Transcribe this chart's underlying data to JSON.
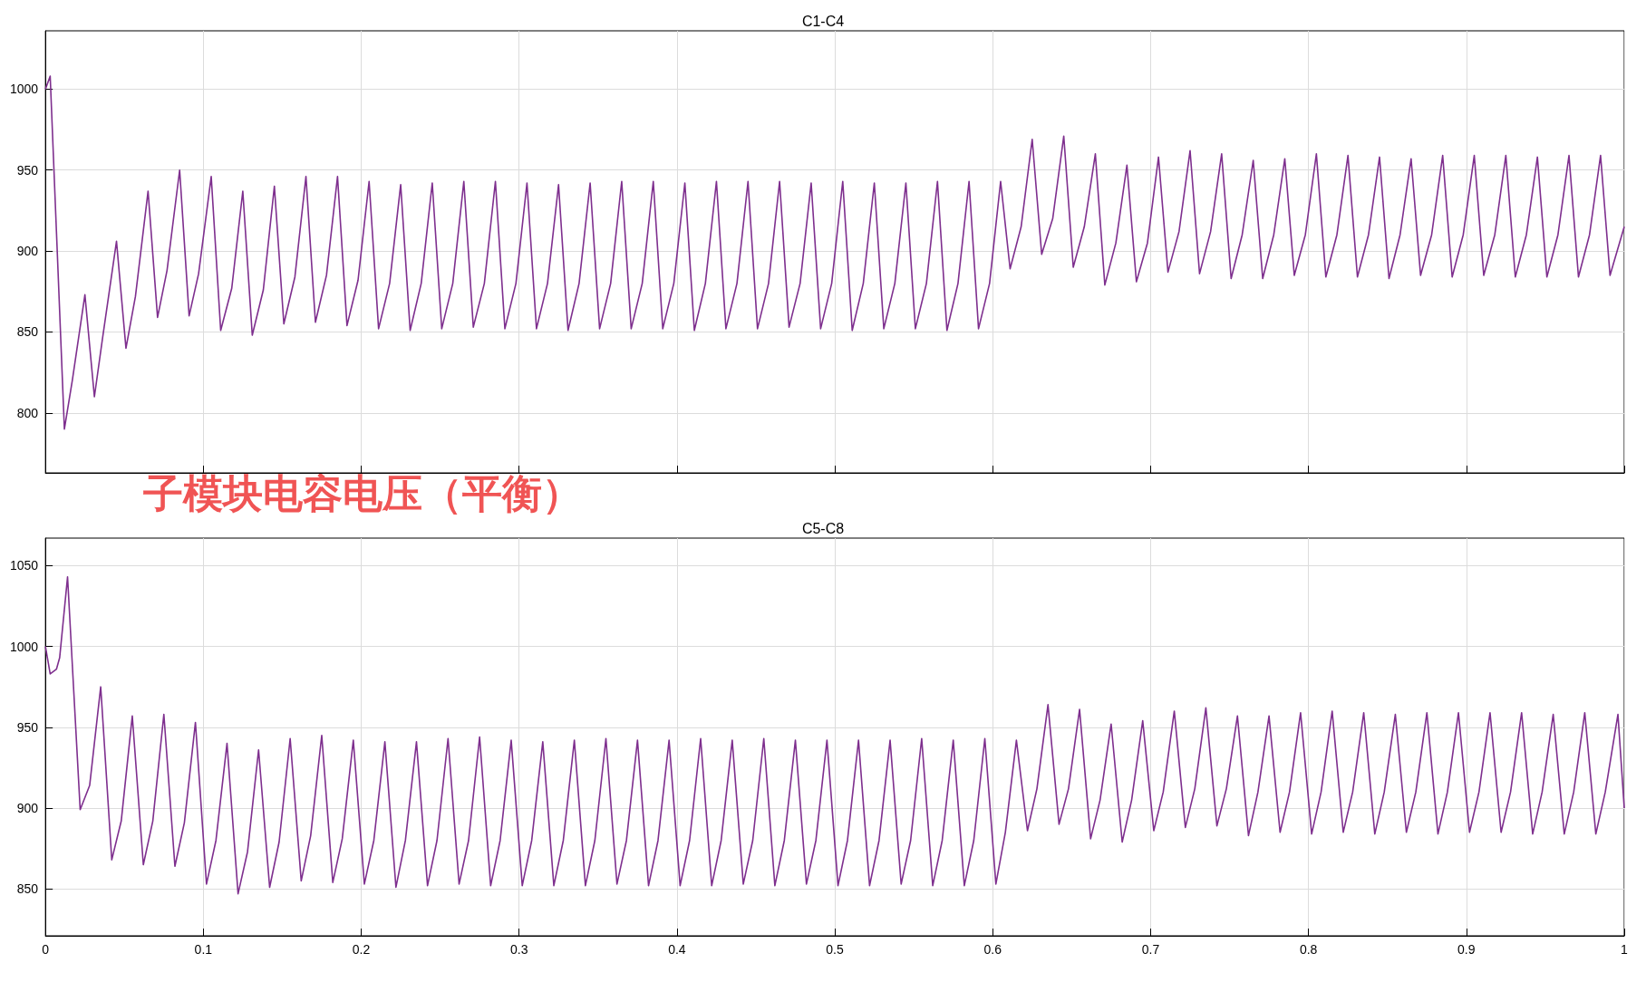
{
  "chart_data": [
    {
      "type": "line",
      "title": "C1-C4",
      "annotations": [
        "子模块电容电压（平衡）"
      ],
      "xlim": [
        0,
        1
      ],
      "xticks": [
        0,
        0.1,
        0.2,
        0.3,
        0.4,
        0.5,
        0.6,
        0.7,
        0.8,
        0.9,
        1
      ],
      "ylim": [
        763,
        1036
      ],
      "yticks": [
        800,
        850,
        900,
        950,
        1000
      ],
      "grid": true,
      "tick_labels": "y",
      "series": [
        {
          "color": "#7e2f8e",
          "x": [
            0,
            0.003,
            0.012,
            0.017,
            0.025,
            0.031,
            0.036,
            0.045,
            0.051,
            0.057,
            0.065,
            0.071,
            0.077,
            0.085,
            0.091,
            0.097,
            0.105,
            0.111,
            0.118,
            0.125,
            0.131,
            0.138,
            0.145,
            0.151,
            0.158,
            0.165,
            0.171,
            0.178,
            0.185,
            0.191,
            0.198,
            0.205,
            0.211,
            0.218,
            0.225,
            0.231,
            0.238,
            0.245,
            0.251,
            0.258,
            0.265,
            0.271,
            0.278,
            0.285,
            0.291,
            0.298,
            0.305,
            0.311,
            0.318,
            0.325,
            0.331,
            0.338,
            0.345,
            0.351,
            0.358,
            0.365,
            0.371,
            0.378,
            0.385,
            0.391,
            0.398,
            0.405,
            0.411,
            0.418,
            0.425,
            0.431,
            0.438,
            0.445,
            0.451,
            0.458,
            0.465,
            0.471,
            0.478,
            0.485,
            0.491,
            0.498,
            0.505,
            0.511,
            0.518,
            0.525,
            0.531,
            0.538,
            0.545,
            0.551,
            0.558,
            0.565,
            0.571,
            0.578,
            0.585,
            0.591,
            0.598,
            0.605,
            0.611,
            0.618,
            0.625,
            0.631,
            0.638,
            0.645,
            0.651,
            0.658,
            0.665,
            0.671,
            0.678,
            0.685,
            0.691,
            0.698,
            0.705,
            0.711,
            0.718,
            0.725,
            0.731,
            0.738,
            0.745,
            0.751,
            0.758,
            0.765,
            0.771,
            0.778,
            0.785,
            0.791,
            0.798,
            0.805,
            0.811,
            0.818,
            0.825,
            0.831,
            0.838,
            0.845,
            0.851,
            0.858,
            0.865,
            0.871,
            0.878,
            0.885,
            0.891,
            0.898,
            0.905,
            0.911,
            0.918,
            0.925,
            0.931,
            0.938,
            0.945,
            0.951,
            0.958,
            0.965,
            0.971,
            0.978,
            0.985,
            0.991,
            1
          ],
          "values": [
            1000,
            1008,
            790,
            820,
            873,
            810,
            845,
            906,
            840,
            872,
            937,
            859,
            888,
            950,
            860,
            886,
            946,
            851,
            877,
            937,
            848,
            876,
            940,
            855,
            884,
            946,
            856,
            885,
            946,
            854,
            882,
            943,
            852,
            880,
            941,
            851,
            880,
            942,
            852,
            880,
            943,
            853,
            880,
            943,
            852,
            880,
            942,
            852,
            880,
            941,
            851,
            880,
            942,
            852,
            880,
            943,
            852,
            880,
            943,
            852,
            880,
            942,
            851,
            880,
            943,
            852,
            880,
            943,
            852,
            880,
            943,
            853,
            880,
            942,
            852,
            880,
            943,
            851,
            880,
            942,
            852,
            880,
            942,
            852,
            880,
            943,
            851,
            880,
            943,
            852,
            880,
            943,
            889,
            915,
            969,
            898,
            920,
            971,
            890,
            915,
            960,
            879,
            905,
            953,
            881,
            905,
            958,
            887,
            912,
            962,
            886,
            912,
            960,
            883,
            910,
            956,
            883,
            910,
            957,
            885,
            910,
            960,
            884,
            910,
            959,
            884,
            910,
            958,
            883,
            910,
            957,
            885,
            910,
            959,
            884,
            910,
            959,
            885,
            910,
            959,
            884,
            910,
            958,
            884,
            910,
            959,
            884,
            910,
            959,
            885,
            915
          ]
        }
      ]
    },
    {
      "type": "line",
      "title": "C5-C8",
      "xlim": [
        0,
        1
      ],
      "xticks": [
        0,
        0.1,
        0.2,
        0.3,
        0.4,
        0.5,
        0.6,
        0.7,
        0.8,
        0.9,
        1
      ],
      "ylim": [
        821,
        1067
      ],
      "yticks": [
        850,
        900,
        950,
        1000,
        1050
      ],
      "grid": true,
      "series": [
        {
          "color": "#7e2f8e",
          "x": [
            0,
            0.003,
            0.007,
            0.009,
            0.014,
            0.022,
            0.028,
            0.035,
            0.042,
            0.048,
            0.055,
            0.062,
            0.068,
            0.075,
            0.082,
            0.088,
            0.095,
            0.102,
            0.108,
            0.115,
            0.122,
            0.128,
            0.135,
            0.142,
            0.148,
            0.155,
            0.162,
            0.168,
            0.175,
            0.182,
            0.188,
            0.195,
            0.202,
            0.208,
            0.215,
            0.222,
            0.228,
            0.235,
            0.242,
            0.248,
            0.255,
            0.262,
            0.268,
            0.275,
            0.282,
            0.288,
            0.295,
            0.302,
            0.308,
            0.315,
            0.322,
            0.328,
            0.335,
            0.342,
            0.348,
            0.355,
            0.362,
            0.368,
            0.375,
            0.382,
            0.388,
            0.395,
            0.402,
            0.408,
            0.415,
            0.422,
            0.428,
            0.435,
            0.442,
            0.448,
            0.455,
            0.462,
            0.468,
            0.475,
            0.482,
            0.488,
            0.495,
            0.502,
            0.508,
            0.515,
            0.522,
            0.528,
            0.535,
            0.542,
            0.548,
            0.555,
            0.562,
            0.568,
            0.575,
            0.582,
            0.588,
            0.595,
            0.602,
            0.608,
            0.615,
            0.622,
            0.628,
            0.635,
            0.642,
            0.648,
            0.655,
            0.662,
            0.668,
            0.675,
            0.682,
            0.688,
            0.695,
            0.702,
            0.708,
            0.715,
            0.722,
            0.728,
            0.735,
            0.742,
            0.748,
            0.755,
            0.762,
            0.768,
            0.775,
            0.782,
            0.788,
            0.795,
            0.802,
            0.808,
            0.815,
            0.822,
            0.828,
            0.835,
            0.842,
            0.848,
            0.855,
            0.862,
            0.868,
            0.875,
            0.882,
            0.888,
            0.895,
            0.902,
            0.908,
            0.915,
            0.922,
            0.928,
            0.935,
            0.942,
            0.948,
            0.955,
            0.962,
            0.968,
            0.975,
            0.982,
            0.988,
            0.996,
            1
          ],
          "values": [
            1000,
            983,
            986,
            993,
            1043,
            899,
            914,
            975,
            868,
            892,
            957,
            865,
            892,
            958,
            864,
            891,
            953,
            853,
            880,
            940,
            847,
            873,
            936,
            851,
            879,
            943,
            855,
            883,
            945,
            854,
            881,
            942,
            853,
            880,
            941,
            851,
            880,
            941,
            852,
            880,
            943,
            853,
            880,
            944,
            852,
            880,
            942,
            852,
            880,
            941,
            852,
            880,
            942,
            852,
            880,
            943,
            853,
            880,
            942,
            852,
            880,
            942,
            852,
            880,
            943,
            852,
            880,
            942,
            853,
            880,
            943,
            852,
            880,
            942,
            853,
            880,
            942,
            852,
            880,
            942,
            852,
            880,
            942,
            853,
            880,
            943,
            852,
            880,
            942,
            852,
            880,
            943,
            853,
            885,
            942,
            886,
            912,
            964,
            890,
            912,
            961,
            881,
            905,
            952,
            879,
            905,
            954,
            886,
            910,
            960,
            888,
            912,
            962,
            889,
            912,
            957,
            883,
            910,
            957,
            885,
            910,
            959,
            884,
            910,
            960,
            885,
            910,
            959,
            884,
            910,
            958,
            885,
            910,
            959,
            884,
            910,
            959,
            885,
            910,
            959,
            885,
            910,
            959,
            884,
            910,
            958,
            884,
            910,
            959,
            884,
            910,
            958,
            900
          ]
        }
      ]
    }
  ]
}
